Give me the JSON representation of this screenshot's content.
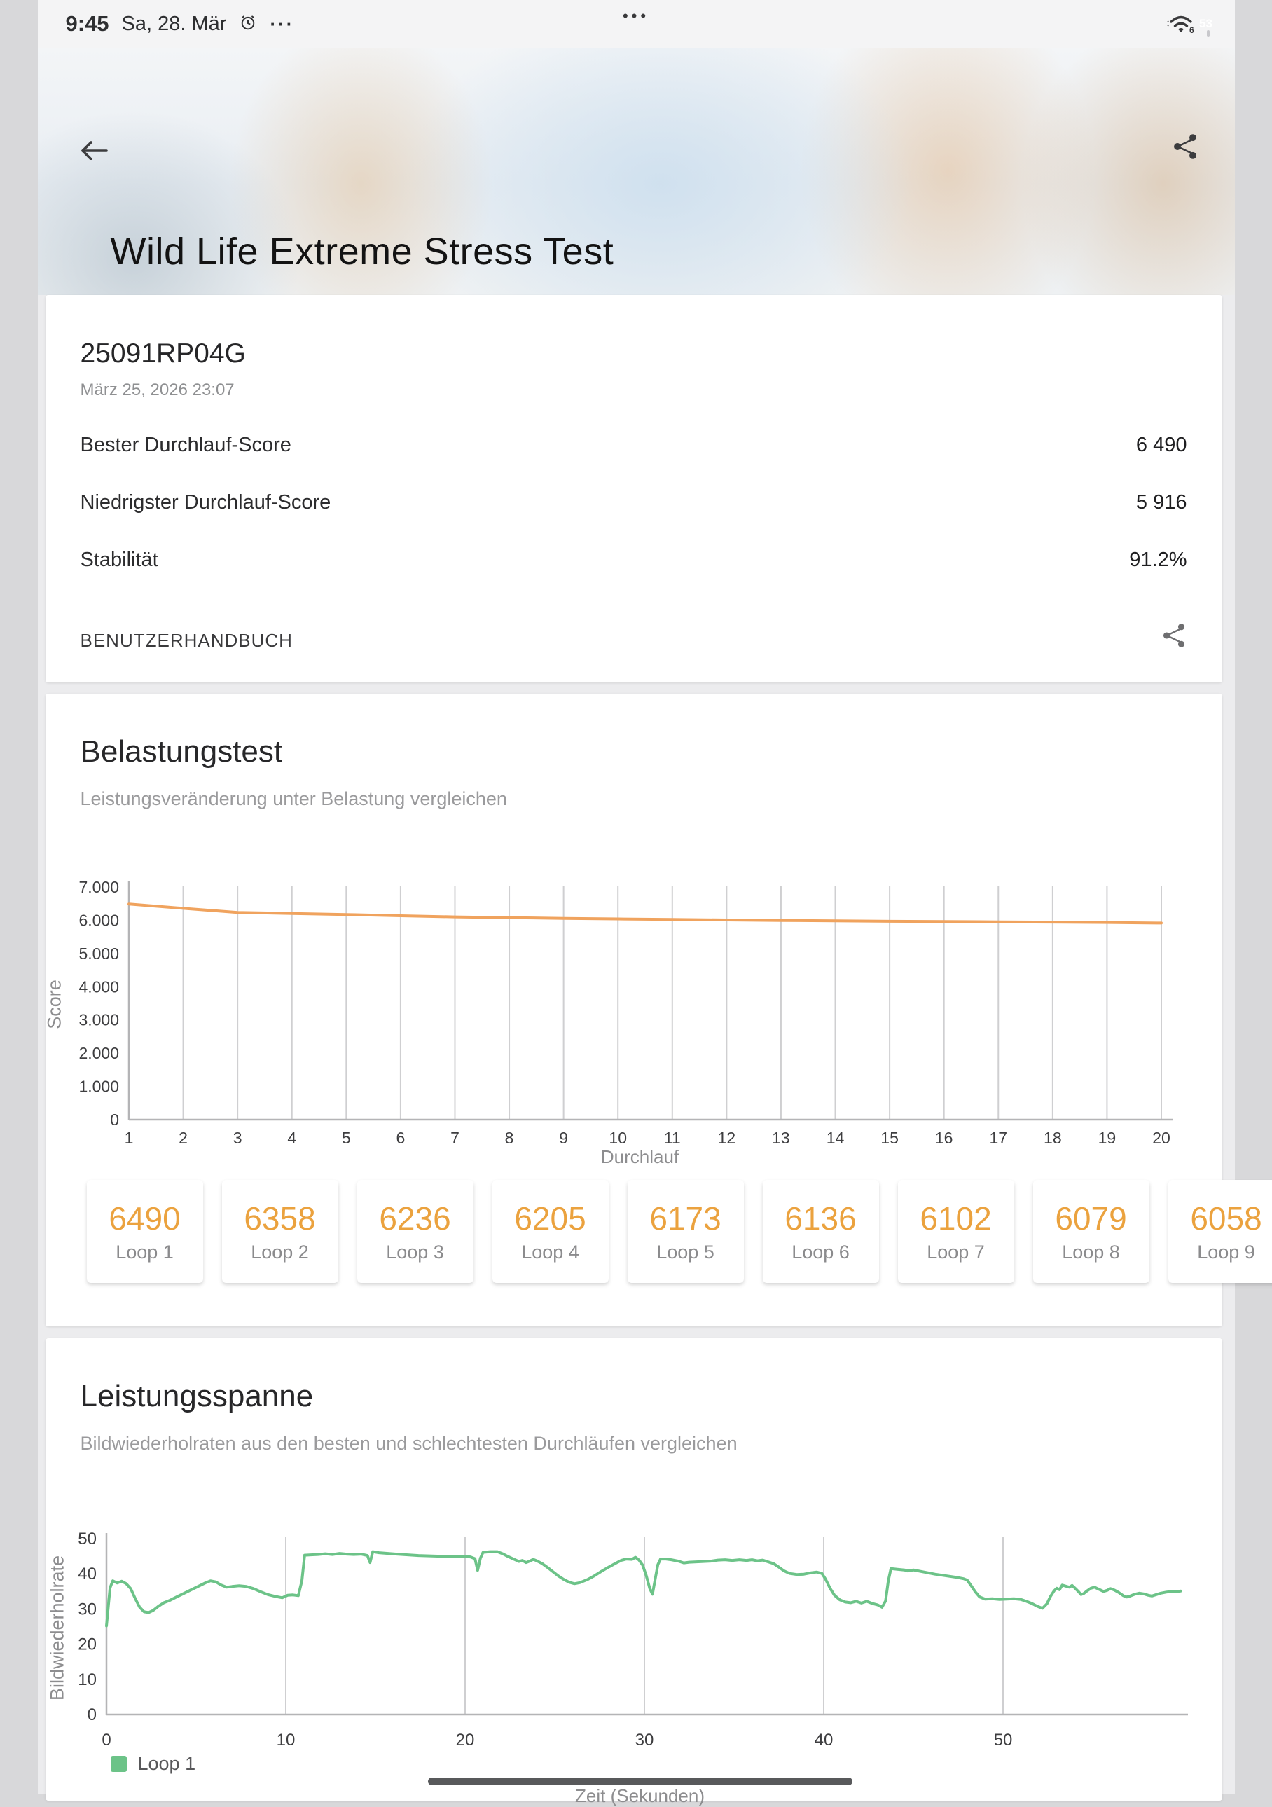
{
  "status_bar": {
    "time": "9:45",
    "date": "Sa, 28. Mär",
    "menu_dots": "···",
    "camera_dots": "•••",
    "wifi_standard": "6",
    "battery_percent": "53"
  },
  "header": {
    "title": "Wild Life Extreme Stress Test"
  },
  "summary": {
    "device": "25091RP04G",
    "datetime": "März 25, 2026 23:07",
    "rows": [
      {
        "label": "Bester Durchlauf-Score",
        "value": "6 490"
      },
      {
        "label": "Niedrigster Durchlauf-Score",
        "value": "5 916"
      },
      {
        "label": "Stabilität",
        "value": "91.2%"
      }
    ],
    "manual_label": "BENUTZERHANDBUCH"
  },
  "stress_section": {
    "title": "Belastungstest",
    "subtitle": "Leistungsveränderung unter Belastung vergleichen",
    "loops": [
      {
        "score": "6490",
        "label": "Loop 1"
      },
      {
        "score": "6358",
        "label": "Loop 2"
      },
      {
        "score": "6236",
        "label": "Loop 3"
      },
      {
        "score": "6205",
        "label": "Loop 4"
      },
      {
        "score": "6173",
        "label": "Loop 5"
      },
      {
        "score": "6136",
        "label": "Loop 6"
      },
      {
        "score": "6102",
        "label": "Loop 7"
      },
      {
        "score": "6079",
        "label": "Loop 8"
      },
      {
        "score": "6058",
        "label": "Loop 9"
      }
    ]
  },
  "span_section": {
    "title": "Leistungsspanne",
    "subtitle": "Bildwiederholraten aus den besten und schlechtesten Durchläufen vergleichen",
    "legend": [
      {
        "label": "Loop 1",
        "color": "#6cc388"
      }
    ]
  },
  "colors": {
    "accent_orange_line": "#f0a35e",
    "accent_orange_score": "#eba23e",
    "accent_green": "#6cc388",
    "axis": "#b4b4b6",
    "grid": "#cfcfd1",
    "tick_text": "#3e3e40"
  },
  "chart_data": [
    {
      "id": "stress-loops",
      "type": "line",
      "xlabel": "Durchlauf",
      "ylabel": "Score",
      "xlim": [
        1,
        20
      ],
      "ylim": [
        0,
        7000
      ],
      "x_ticks": [
        1,
        2,
        3,
        4,
        5,
        6,
        7,
        8,
        9,
        10,
        11,
        12,
        13,
        14,
        15,
        16,
        17,
        18,
        19,
        20
      ],
      "y_ticks": [
        0,
        1000,
        2000,
        3000,
        4000,
        5000,
        6000,
        7000
      ],
      "y_tick_labels": [
        "0",
        "1.000",
        "2.000",
        "3.000",
        "4.000",
        "5.000",
        "6.000",
        "7.000"
      ],
      "grid": "vertical",
      "legend_position": "none",
      "x_start": 1,
      "series": [
        {
          "name": "Score",
          "color": "#f0a35e",
          "values": [
            6490,
            6358,
            6236,
            6205,
            6173,
            6136,
            6102,
            6079,
            6058,
            6040,
            6024,
            6008,
            5994,
            5981,
            5969,
            5960,
            5952,
            5944,
            5934,
            5916
          ]
        }
      ]
    },
    {
      "id": "fps-span",
      "type": "line",
      "xlabel": "Zeit (Sekunden)",
      "ylabel": "Bildwiederholrate",
      "xlim": [
        0,
        60
      ],
      "ylim": [
        0,
        50
      ],
      "x_ticks": [
        0,
        10,
        20,
        30,
        40,
        50
      ],
      "y_ticks": [
        0,
        10,
        20,
        30,
        40,
        50
      ],
      "grid": "vertical",
      "legend_position": "bottom-left",
      "series": [
        {
          "name": "Loop 1",
          "color": "#6cc388",
          "points": [
            [
              0,
              25.2
            ],
            [
              0.2,
              36
            ],
            [
              0.35,
              38
            ],
            [
              0.6,
              37.4
            ],
            [
              0.85,
              37.9
            ],
            [
              1.1,
              37.2
            ],
            [
              1.35,
              35.8
            ],
            [
              1.6,
              33
            ],
            [
              1.85,
              30.5
            ],
            [
              2.1,
              29.2
            ],
            [
              2.35,
              29
            ],
            [
              2.6,
              29.6
            ],
            [
              2.9,
              30.8
            ],
            [
              3.2,
              31.8
            ],
            [
              3.5,
              32.4
            ],
            [
              3.9,
              33.4
            ],
            [
              4.3,
              34.4
            ],
            [
              4.7,
              35.4
            ],
            [
              5.1,
              36.4
            ],
            [
              5.5,
              37.4
            ],
            [
              5.8,
              38
            ],
            [
              6.1,
              37.7
            ],
            [
              6.4,
              36.8
            ],
            [
              6.7,
              36.2
            ],
            [
              7,
              36.4
            ],
            [
              7.4,
              36.6
            ],
            [
              7.8,
              36.4
            ],
            [
              8.2,
              35.8
            ],
            [
              8.6,
              34.9
            ],
            [
              9,
              34.1
            ],
            [
              9.4,
              33.6
            ],
            [
              9.8,
              33.2
            ],
            [
              10.1,
              33.9
            ],
            [
              10.4,
              34
            ],
            [
              10.7,
              33.8
            ],
            [
              10.9,
              38
            ],
            [
              11.05,
              45.3
            ],
            [
              11.4,
              45.4
            ],
            [
              11.8,
              45.5
            ],
            [
              12.2,
              45.7
            ],
            [
              12.6,
              45.5
            ],
            [
              13,
              45.8
            ],
            [
              13.4,
              45.6
            ],
            [
              13.8,
              45.5
            ],
            [
              14.2,
              45.6
            ],
            [
              14.55,
              45.2
            ],
            [
              14.7,
              43.2
            ],
            [
              14.85,
              46.3
            ],
            [
              15.2,
              46
            ],
            [
              15.7,
              45.8
            ],
            [
              16.2,
              45.6
            ],
            [
              16.8,
              45.4
            ],
            [
              17.4,
              45.2
            ],
            [
              18,
              45.1
            ],
            [
              18.6,
              45
            ],
            [
              19.2,
              44.9
            ],
            [
              19.8,
              45
            ],
            [
              20.3,
              44.8
            ],
            [
              20.55,
              44.3
            ],
            [
              20.7,
              41
            ],
            [
              20.85,
              44.4
            ],
            [
              21,
              46.1
            ],
            [
              21.4,
              46.3
            ],
            [
              21.8,
              46.3
            ],
            [
              22.1,
              45.7
            ],
            [
              22.4,
              44.9
            ],
            [
              22.7,
              44.2
            ],
            [
              23,
              43.5
            ],
            [
              23.2,
              43.8
            ],
            [
              23.4,
              43.2
            ],
            [
              23.6,
              43.6
            ],
            [
              23.8,
              44.1
            ],
            [
              24,
              43.7
            ],
            [
              24.3,
              42.9
            ],
            [
              24.6,
              41.8
            ],
            [
              24.9,
              40.6
            ],
            [
              25.2,
              39.4
            ],
            [
              25.5,
              38.4
            ],
            [
              25.8,
              37.6
            ],
            [
              26.1,
              37.2
            ],
            [
              26.4,
              37.5
            ],
            [
              26.8,
              38.3
            ],
            [
              27.2,
              39.4
            ],
            [
              27.6,
              40.7
            ],
            [
              28,
              41.9
            ],
            [
              28.4,
              43
            ],
            [
              28.7,
              43.8
            ],
            [
              29,
              44.2
            ],
            [
              29.3,
              44.1
            ],
            [
              29.5,
              44.7
            ],
            [
              29.7,
              43.9
            ],
            [
              29.9,
              42.5
            ],
            [
              30.1,
              39.5
            ],
            [
              30.3,
              35.8
            ],
            [
              30.45,
              34.2
            ],
            [
              30.6,
              38.5
            ],
            [
              30.75,
              42.6
            ],
            [
              30.9,
              44.2
            ],
            [
              31.2,
              44.2
            ],
            [
              31.5,
              44
            ],
            [
              31.9,
              43.6
            ],
            [
              32.2,
              43.1
            ],
            [
              32.5,
              43.3
            ],
            [
              32.9,
              43.4
            ],
            [
              33.3,
              43.5
            ],
            [
              33.7,
              43.6
            ],
            [
              34.1,
              43.9
            ],
            [
              34.5,
              44
            ],
            [
              34.9,
              43.8
            ],
            [
              35.3,
              44
            ],
            [
              35.7,
              43.8
            ],
            [
              36,
              44
            ],
            [
              36.3,
              43.7
            ],
            [
              36.6,
              43.9
            ],
            [
              36.9,
              43.4
            ],
            [
              37.2,
              42.9
            ],
            [
              37.5,
              41.9
            ],
            [
              37.8,
              40.8
            ],
            [
              38.1,
              40.1
            ],
            [
              38.5,
              39.8
            ],
            [
              38.9,
              39.9
            ],
            [
              39.3,
              40.3
            ],
            [
              39.6,
              40.5
            ],
            [
              39.9,
              40.1
            ],
            [
              40.1,
              38.5
            ],
            [
              40.35,
              35.9
            ],
            [
              40.6,
              33.9
            ],
            [
              40.9,
              32.6
            ],
            [
              41.2,
              32
            ],
            [
              41.5,
              31.8
            ],
            [
              41.8,
              32.2
            ],
            [
              42.1,
              31.7
            ],
            [
              42.4,
              32.2
            ],
            [
              42.7,
              31.6
            ],
            [
              43,
              31.2
            ],
            [
              43.25,
              30.5
            ],
            [
              43.45,
              32.3
            ],
            [
              43.6,
              38
            ],
            [
              43.75,
              41.5
            ],
            [
              44.1,
              41.3
            ],
            [
              44.5,
              41.1
            ],
            [
              44.7,
              40.8
            ],
            [
              45,
              41.1
            ],
            [
              45.4,
              40.7
            ],
            [
              45.8,
              40.3
            ],
            [
              46.2,
              39.9
            ],
            [
              46.6,
              39.6
            ],
            [
              47,
              39.3
            ],
            [
              47.4,
              39
            ],
            [
              47.8,
              38.6
            ],
            [
              48,
              38.2
            ],
            [
              48.2,
              36.8
            ],
            [
              48.45,
              34.9
            ],
            [
              48.7,
              33.4
            ],
            [
              49,
              32.8
            ],
            [
              49.4,
              32.9
            ],
            [
              49.8,
              32.7
            ],
            [
              50.2,
              32.8
            ],
            [
              50.6,
              32.9
            ],
            [
              51,
              32.7
            ],
            [
              51.3,
              32.2
            ],
            [
              51.6,
              31.6
            ],
            [
              51.9,
              30.8
            ],
            [
              52.2,
              30.2
            ],
            [
              52.45,
              31.5
            ],
            [
              52.65,
              33.6
            ],
            [
              52.85,
              35.2
            ],
            [
              53,
              35.9
            ],
            [
              53.15,
              35.5
            ],
            [
              53.3,
              36.8
            ],
            [
              53.5,
              36.5
            ],
            [
              53.7,
              36.2
            ],
            [
              53.85,
              36.7
            ],
            [
              54,
              36
            ],
            [
              54.2,
              35
            ],
            [
              54.35,
              34.1
            ],
            [
              54.5,
              34.4
            ],
            [
              54.7,
              35.2
            ],
            [
              54.9,
              35.9
            ],
            [
              55.1,
              36.2
            ],
            [
              55.35,
              35.6
            ],
            [
              55.6,
              35
            ],
            [
              55.8,
              35.3
            ],
            [
              56,
              35.8
            ],
            [
              56.2,
              35.4
            ],
            [
              56.45,
              34.7
            ],
            [
              56.7,
              33.8
            ],
            [
              56.9,
              33.4
            ],
            [
              57.1,
              33.7
            ],
            [
              57.35,
              34.2
            ],
            [
              57.6,
              34.5
            ],
            [
              57.85,
              34.3
            ],
            [
              58.1,
              33.9
            ],
            [
              58.3,
              33.7
            ],
            [
              58.55,
              34.1
            ],
            [
              58.8,
              34.5
            ],
            [
              59.1,
              34.8
            ],
            [
              59.4,
              35
            ],
            [
              59.65,
              34.9
            ],
            [
              59.9,
              35.1
            ]
          ]
        }
      ]
    }
  ]
}
